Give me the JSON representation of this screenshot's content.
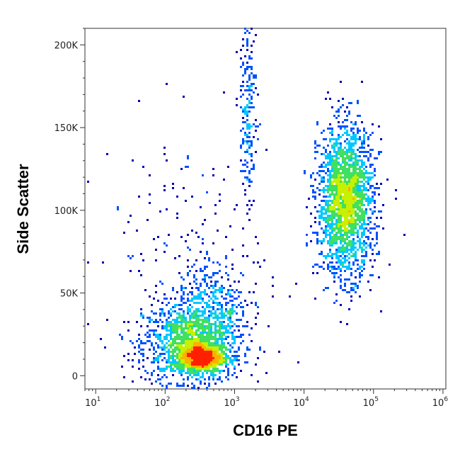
{
  "chart_data": {
    "type": "scatter",
    "title": "",
    "xlabel": "CD16 PE",
    "ylabel": "Side Scatter",
    "x_scale": "log",
    "xlim": [
      7,
      1100000
    ],
    "ylim": [
      -8000,
      210000
    ],
    "x_ticks": [
      {
        "value": 10,
        "base": "10",
        "exp": "1"
      },
      {
        "value": 100,
        "base": "10",
        "exp": "2"
      },
      {
        "value": 1000,
        "base": "10",
        "exp": "3"
      },
      {
        "value": 10000,
        "base": "10",
        "exp": "4"
      },
      {
        "value": 100000,
        "base": "10",
        "exp": "5"
      },
      {
        "value": 1000000,
        "base": "10",
        "exp": "6"
      }
    ],
    "y_ticks": [
      {
        "value": 0,
        "label": "0"
      },
      {
        "value": 50000,
        "label": "50K"
      },
      {
        "value": 100000,
        "label": "100K"
      },
      {
        "value": 150000,
        "label": "150K"
      },
      {
        "value": 200000,
        "label": "200K"
      }
    ],
    "density_colors": [
      "#0000b4",
      "#0050ff",
      "#00c8ff",
      "#40e060",
      "#c8f000",
      "#ffb000",
      "#ff2000"
    ],
    "populations": [
      {
        "x_center": 250,
        "y_center": 20000,
        "x_spread_decades": 0.35,
        "y_spread": 12000,
        "points": 1400
      },
      {
        "x_center": 320,
        "y_center": 11000,
        "x_spread_decades": 0.17,
        "y_spread": 4500,
        "points": 1000
      },
      {
        "x_center": 500,
        "y_center": 45000,
        "x_spread_decades": 0.25,
        "y_spread": 12000,
        "points": 300
      },
      {
        "x_center": 40000,
        "y_center": 105000,
        "x_spread_decades": 0.2,
        "y_spread": 22000,
        "points": 2300
      },
      {
        "x_center": 1600,
        "y_center": 160000,
        "x_spread_decades": 0.06,
        "y_spread": 30000,
        "points": 200
      },
      {
        "x_center": 200,
        "y_center": 60000,
        "x_spread_decades": 0.6,
        "y_spread": 45000,
        "points": 250
      }
    ]
  }
}
